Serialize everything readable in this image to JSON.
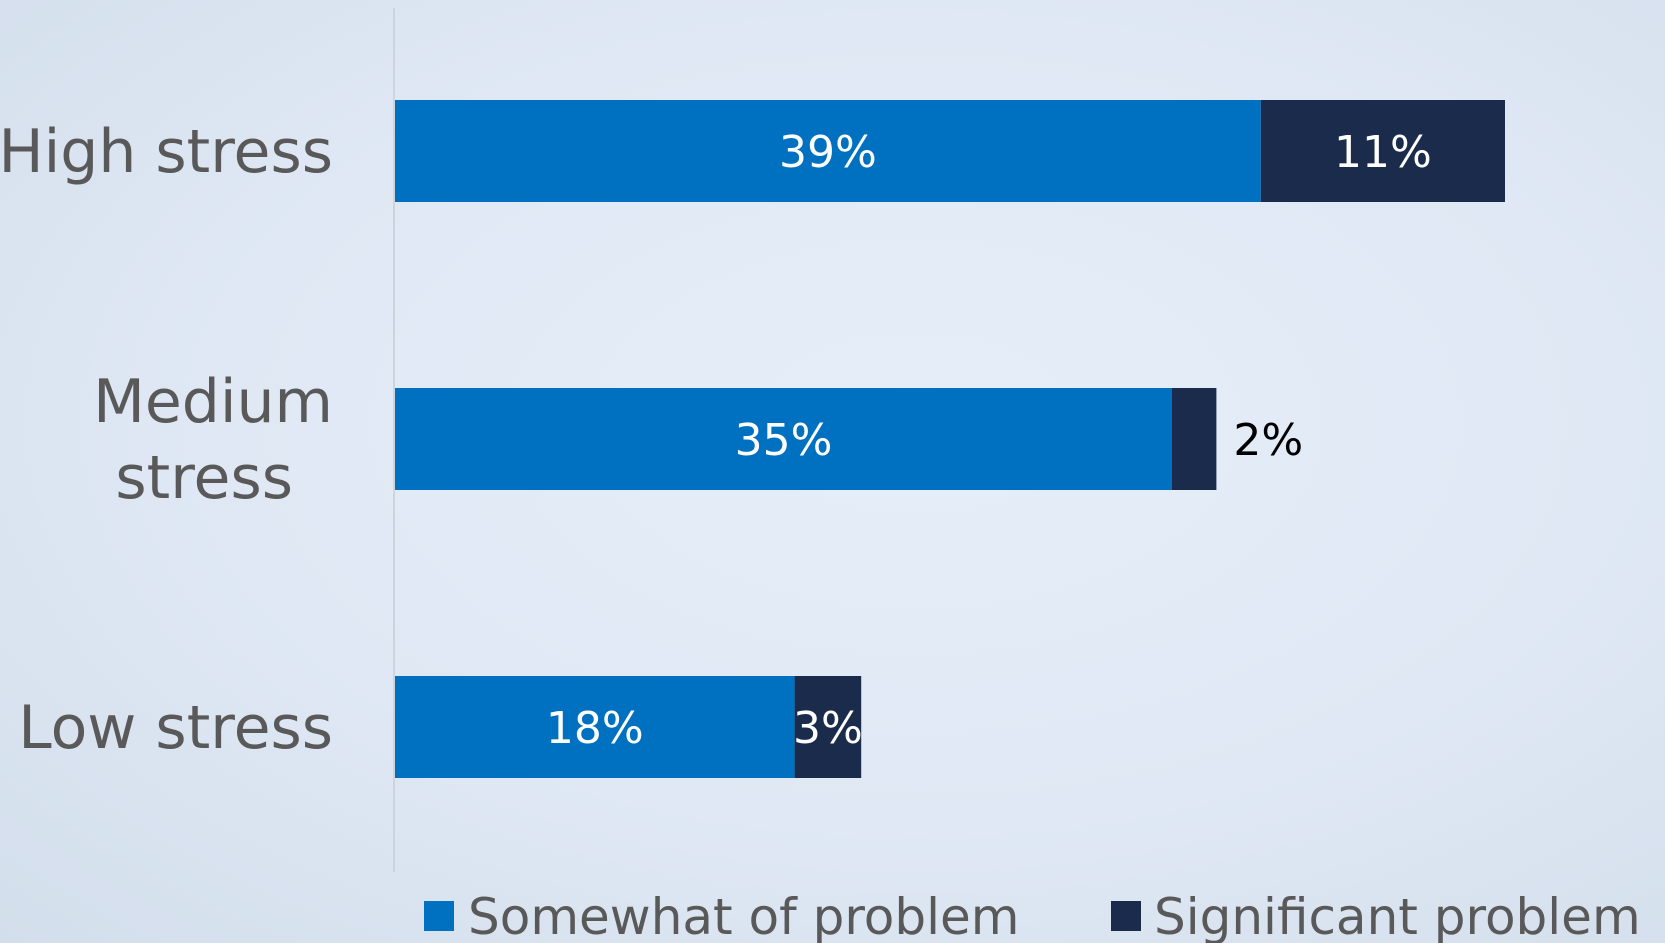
{
  "colors": {
    "somewhat": "#0070c0",
    "significant": "#1a2b4c",
    "axis_line": "#c8cdd4",
    "label_inside": "#ffffff",
    "label_outside": "#000000",
    "text_gray": "#595959"
  },
  "chart_data": {
    "type": "bar",
    "orientation": "horizontal",
    "stacked": true,
    "categories": [
      "High stress",
      "Medium stress",
      "Low stress"
    ],
    "category_lines": [
      [
        "High stress"
      ],
      [
        "Medium",
        "stress"
      ],
      [
        "Low stress"
      ]
    ],
    "series": [
      {
        "name": "Somewhat of problem",
        "values": [
          39,
          35,
          18
        ],
        "labels": [
          "39%",
          "35%",
          "18%"
        ]
      },
      {
        "name": "Significant problem",
        "values": [
          11,
          2,
          3
        ],
        "labels": [
          "11%",
          "2%",
          "3%"
        ]
      }
    ],
    "xlim": [
      0,
      52
    ],
    "grid": false,
    "legend": "bottom"
  }
}
